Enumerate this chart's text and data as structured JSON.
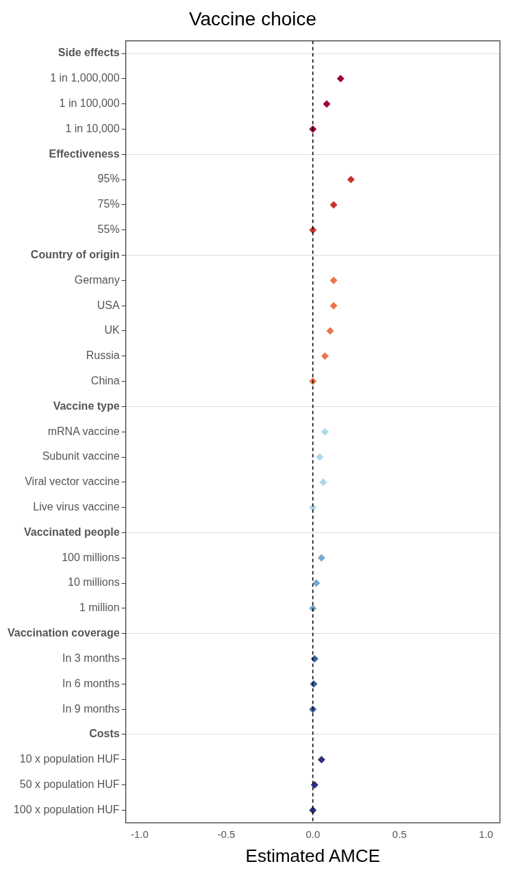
{
  "chart_data": {
    "type": "scatter",
    "orientation": "horizontal",
    "title": "Vaccine choice",
    "xlabel": "Estimated AMCE",
    "categories": [
      "Side effects",
      "1 in 1,000,000",
      "1 in 100,000",
      "1 in 10,000",
      "Effectiveness",
      "95%",
      "75%",
      "55%",
      "Country of origin",
      "Germany",
      "USA",
      "UK",
      "Russia",
      "China",
      "Vaccine type",
      "mRNA vaccine",
      "Subunit vaccine",
      "Viral vector vaccine",
      "Live virus vaccine",
      "Vaccinated people",
      "100 millions",
      "10 millions",
      "1 million",
      "Vaccination coverage",
      "In 3 months",
      "In 6 months",
      "In 9 months",
      "Costs",
      "10 x population HUF",
      "50 x population HUF",
      "100 x population HUF"
    ],
    "series": [
      {
        "color": "#9b0a2f",
        "values": [
          null,
          0.16,
          0.08,
          0,
          null,
          null,
          null,
          null,
          null,
          null,
          null,
          null,
          null,
          null,
          null,
          null,
          null,
          null,
          null,
          null,
          null,
          null,
          null,
          null,
          null,
          null,
          null,
          null,
          null,
          null,
          null
        ]
      },
      {
        "color": "#c9342d",
        "values": [
          null,
          null,
          null,
          null,
          null,
          0.22,
          0.12,
          0,
          null,
          null,
          null,
          null,
          null,
          null,
          null,
          null,
          null,
          null,
          null,
          null,
          null,
          null,
          null,
          null,
          null,
          null,
          null,
          null,
          null,
          null,
          null
        ]
      },
      {
        "color": "#ea7549",
        "values": [
          null,
          null,
          null,
          null,
          null,
          null,
          null,
          null,
          null,
          0.12,
          0.12,
          0.1,
          0.07,
          0,
          null,
          null,
          null,
          null,
          null,
          null,
          null,
          null,
          null,
          null,
          null,
          null,
          null,
          null,
          null,
          null,
          null
        ]
      },
      {
        "color": "#abd9e9",
        "values": [
          null,
          null,
          null,
          null,
          null,
          null,
          null,
          null,
          null,
          null,
          null,
          null,
          null,
          null,
          null,
          0.07,
          0.04,
          0.06,
          0,
          null,
          null,
          null,
          null,
          null,
          null,
          null,
          null,
          null,
          null,
          null,
          null
        ]
      },
      {
        "color": "#74a9cf",
        "values": [
          null,
          null,
          null,
          null,
          null,
          null,
          null,
          null,
          null,
          null,
          null,
          null,
          null,
          null,
          null,
          null,
          null,
          null,
          null,
          null,
          0.05,
          0.02,
          0,
          null,
          null,
          null,
          null,
          null,
          null,
          null,
          null
        ]
      },
      {
        "color": "#3b5fa0",
        "values": [
          null,
          null,
          null,
          null,
          null,
          null,
          null,
          null,
          null,
          null,
          null,
          null,
          null,
          null,
          null,
          null,
          null,
          null,
          null,
          null,
          null,
          null,
          null,
          null,
          0.01,
          0.005,
          0,
          null,
          null,
          null,
          null
        ]
      },
      {
        "color": "#2b2f7e",
        "values": [
          null,
          null,
          null,
          null,
          null,
          null,
          null,
          null,
          null,
          null,
          null,
          null,
          null,
          null,
          null,
          null,
          null,
          null,
          null,
          null,
          null,
          null,
          null,
          null,
          null,
          null,
          null,
          null,
          0.05,
          0.01,
          0
        ]
      }
    ],
    "xlim": [
      -1.08,
      1.08
    ],
    "xticks": [
      {
        "value": -1,
        "label": "-1.0"
      },
      {
        "value": -0.5,
        "label": "-0.5"
      },
      {
        "value": 0,
        "label": "0.0"
      },
      {
        "value": 0.5,
        "label": "0.5"
      },
      {
        "value": 1,
        "label": "1.0"
      }
    ],
    "ref_lines": [
      {
        "axis": "x",
        "value": 0,
        "line_style": "dashed",
        "color": "#000000"
      }
    ],
    "grid": "y",
    "marker": "diamond",
    "legend": false
  }
}
